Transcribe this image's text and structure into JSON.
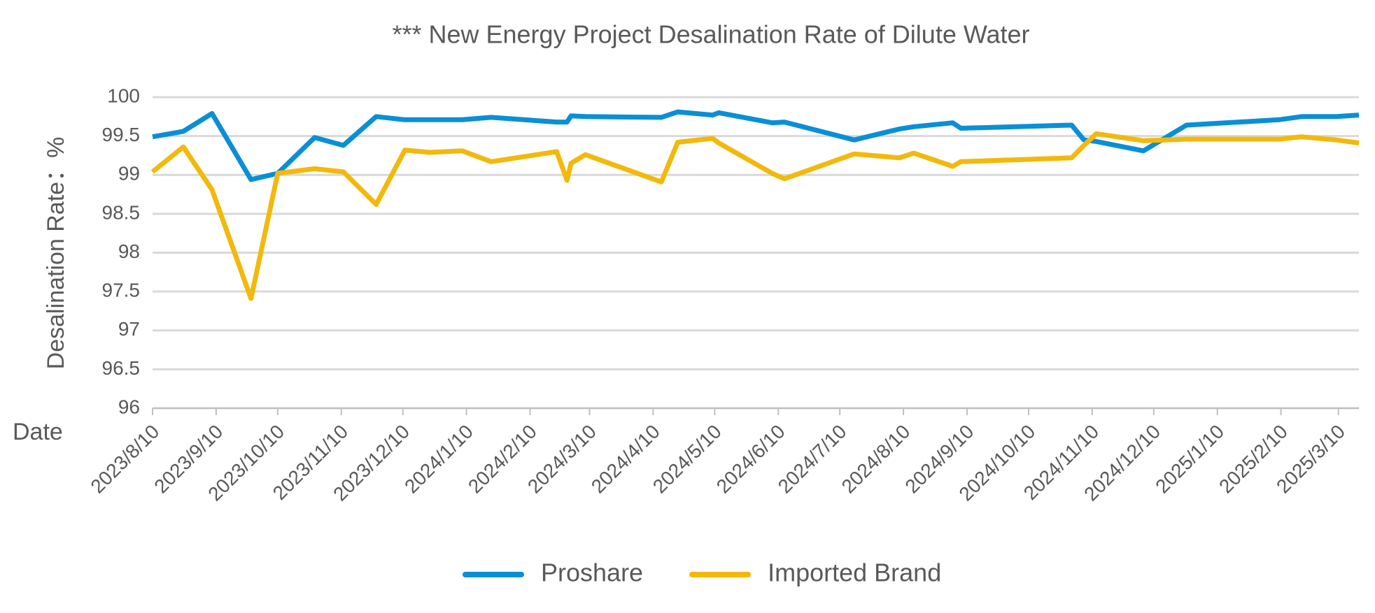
{
  "chart_data": {
    "type": "line",
    "title": "*** New Energy Project Desalination Rate of Dilute Water",
    "x_label": "Date",
    "y_label": "Desalination Rate：%",
    "x": [
      "2023/8/10",
      "2023/8/25",
      "2023/9/8",
      "2023/9/27",
      "2023/10/10",
      "2023/10/28",
      "2023/11/11",
      "2023/11/27",
      "2023/12/11",
      "2023/12/23",
      "2024/1/8",
      "2024/1/22",
      "2024/2/23",
      "2024/2/28",
      "2024/3/1",
      "2024/3/8",
      "2024/4/14",
      "2024/4/22",
      "2024/5/9",
      "2024/5/12",
      "2024/6/7",
      "2024/6/13",
      "2024/7/17",
      "2024/8/8",
      "2024/8/15",
      "2024/9/3",
      "2024/9/7",
      "2024/10/31",
      "2024/11/6",
      "2024/11/12",
      "2024/12/5",
      "2024/12/26",
      "2025/2/9",
      "2025/2/20",
      "2025/3/9",
      "2025/3/20"
    ],
    "series": [
      {
        "name": "Proshare",
        "color": "#0a8fd6",
        "values": [
          99.49,
          99.56,
          99.79,
          98.94,
          99.02,
          99.48,
          99.38,
          99.75,
          99.71,
          99.71,
          99.71,
          99.74,
          99.68,
          99.68,
          99.76,
          99.75,
          99.74,
          99.81,
          99.77,
          99.8,
          99.67,
          99.68,
          99.45,
          99.59,
          99.62,
          99.67,
          99.6,
          99.64,
          99.45,
          99.43,
          99.31,
          99.64,
          99.71,
          99.75,
          99.75,
          99.77
        ]
      },
      {
        "name": "Imported Brand",
        "color": "#f2b90c",
        "values": [
          99.04,
          99.36,
          98.81,
          97.41,
          99.02,
          99.08,
          99.04,
          98.62,
          99.32,
          99.29,
          99.31,
          99.17,
          99.3,
          98.93,
          99.15,
          99.26,
          98.91,
          99.42,
          99.47,
          99.41,
          99.02,
          98.95,
          99.27,
          99.22,
          99.28,
          99.11,
          99.17,
          99.22,
          99.38,
          99.53,
          99.44,
          99.46,
          99.46,
          99.49,
          99.45,
          99.41
        ]
      }
    ],
    "xlim": [
      "2023/8/10",
      "2025/3/20"
    ],
    "xticks": [
      "2023/8/10",
      "2023/9/10",
      "2023/10/10",
      "2023/11/10",
      "2023/12/10",
      "2024/1/10",
      "2024/2/10",
      "2024/3/10",
      "2024/4/10",
      "2024/5/10",
      "2024/6/10",
      "2024/7/10",
      "2024/8/10",
      "2024/9/10",
      "2024/10/10",
      "2024/11/10",
      "2024/12/10",
      "2025/1/10",
      "2025/2/10",
      "2025/3/10"
    ],
    "ylim": [
      96,
      100
    ],
    "yticks": [
      96,
      96.5,
      97,
      97.5,
      98,
      98.5,
      99,
      99.5,
      100
    ],
    "grid": true,
    "legend": "bottom"
  }
}
